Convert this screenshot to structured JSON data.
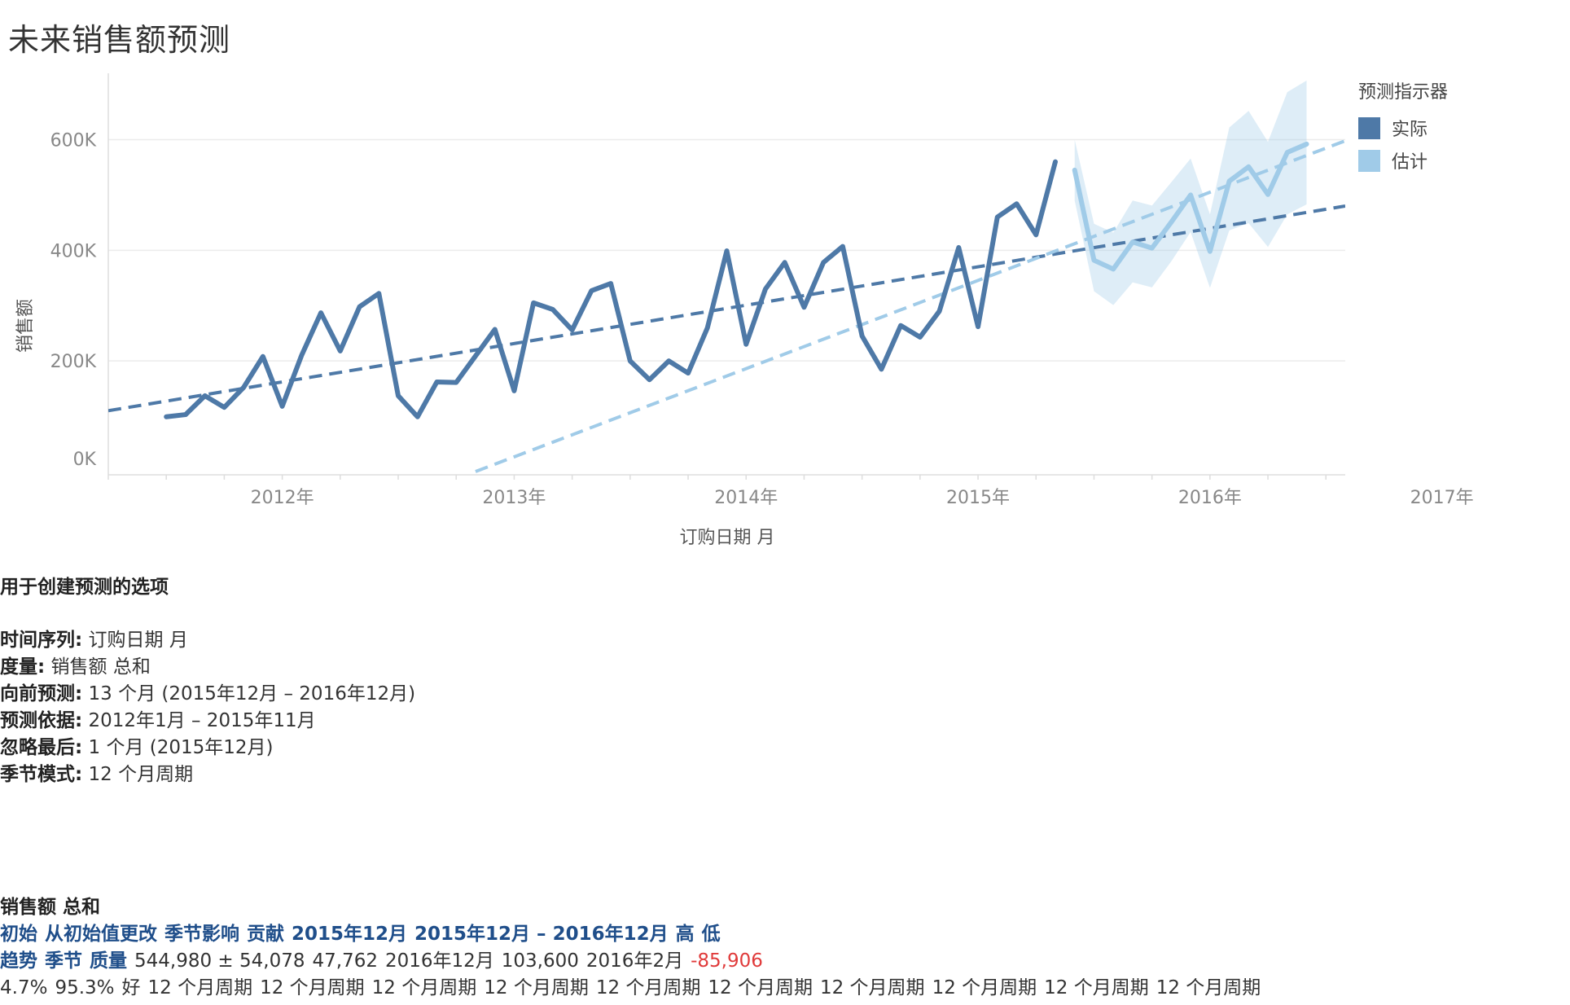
{
  "title": "未来销售额预测",
  "chart_data": {
    "type": "line",
    "xlabel": "订购日期 月",
    "ylabel": "销售额",
    "x_tick_labels": [
      "2012年",
      "2013年",
      "2014年",
      "2015年",
      "2016年",
      "2017年"
    ],
    "y_tick_labels": [
      "0K",
      "200K",
      "400K",
      "600K"
    ],
    "ylim": [
      0,
      720000
    ],
    "xlim": [
      "2011-10",
      "2017-02"
    ],
    "grid": "horizontal",
    "legend": {
      "title": "预测指示器",
      "placement": "top-right",
      "items": [
        {
          "label": "实际",
          "color": "#4e79a7"
        },
        {
          "label": "估计",
          "color": "#a0cbe8"
        }
      ]
    },
    "series": [
      {
        "name": "实际",
        "color": "#4e79a7",
        "x": [
          "2012-01",
          "2012-02",
          "2012-03",
          "2012-04",
          "2012-05",
          "2012-06",
          "2012-07",
          "2012-08",
          "2012-09",
          "2012-10",
          "2012-11",
          "2012-12",
          "2013-01",
          "2013-02",
          "2013-03",
          "2013-04",
          "2013-05",
          "2013-06",
          "2013-07",
          "2013-08",
          "2013-09",
          "2013-10",
          "2013-11",
          "2013-12",
          "2014-01",
          "2014-02",
          "2014-03",
          "2014-04",
          "2014-05",
          "2014-06",
          "2014-07",
          "2014-08",
          "2014-09",
          "2014-10",
          "2014-11",
          "2014-12",
          "2015-01",
          "2015-02",
          "2015-03",
          "2015-04",
          "2015-05",
          "2015-06",
          "2015-07",
          "2015-08",
          "2015-09",
          "2015-10",
          "2015-11"
        ],
        "values": [
          99000,
          103000,
          137000,
          116000,
          152000,
          208000,
          118000,
          210000,
          287000,
          218000,
          298000,
          322000,
          137000,
          99000,
          162000,
          161000,
          209000,
          257000,
          146000,
          305000,
          293000,
          256000,
          327000,
          340000,
          200000,
          166000,
          200000,
          178000,
          260000,
          399000,
          230000,
          330000,
          378000,
          297000,
          378000,
          407000,
          245000,
          185000,
          264000,
          243000,
          290000,
          405000,
          262000,
          460000,
          484000,
          428000,
          560000
        ]
      },
      {
        "name": "估计",
        "color": "#a0cbe8",
        "x": [
          "2015-12",
          "2016-01",
          "2016-02",
          "2016-03",
          "2016-04",
          "2016-05",
          "2016-06",
          "2016-07",
          "2016-08",
          "2016-09",
          "2016-10",
          "2016-11",
          "2016-12"
        ],
        "values": [
          545000,
          382000,
          366000,
          415000,
          404000,
          451000,
          500000,
          398000,
          525000,
          551000,
          501000,
          577000,
          592000
        ],
        "upper": [
          600000,
          448000,
          432000,
          490000,
          481000,
          523000,
          566000,
          465000,
          622000,
          652000,
          596000,
          686000,
          707000
        ],
        "lower": [
          490000,
          326000,
          301000,
          342000,
          333000,
          380000,
          433000,
          332000,
          436000,
          449000,
          406000,
          465000,
          483000
        ]
      }
    ],
    "trend_lines": [
      {
        "series": "实际",
        "style": "dashed",
        "color": "#4e79a7",
        "x": [
          "2011-10",
          "2017-02"
        ],
        "values": [
          110000,
          480000
        ]
      },
      {
        "series": "估计",
        "style": "dashed",
        "color": "#a0cbe8",
        "x": [
          "2013-05",
          "2017-02"
        ],
        "values": [
          0,
          598000
        ]
      }
    ]
  },
  "options": {
    "heading": "用于创建预测的选项",
    "items": [
      {
        "label": "时间序列:",
        "value": "订购日期 月"
      },
      {
        "label": "度量:",
        "value": "销售额 总和"
      },
      {
        "label": "向前预测:",
        "value": "13 个月 (2015年12月 – 2016年12月)"
      },
      {
        "label": "预测依据:",
        "value": "2012年1月 – 2015年11月"
      },
      {
        "label": "忽略最后:",
        "value": "1 个月 (2015年12月)"
      },
      {
        "label": "季节模式:",
        "value": "12 个月周期"
      }
    ]
  },
  "summary": {
    "heading": "销售额 总和",
    "header_row": [
      "初始",
      "从初始值更改",
      "季节影响",
      "贡献",
      "2015年12月",
      "2015年12月 – 2016年12月",
      "高",
      "低"
    ],
    "row1_labels": [
      "趋势",
      "季节",
      "质量"
    ],
    "row1_values": [
      "544,980 ± 54,078",
      "47,762",
      "2016年12月",
      "103,600",
      "2016年2月"
    ],
    "row1_negative": "-85,906",
    "row2_values": [
      "4.7%",
      "95.3%",
      "好",
      "12 个月周期",
      "12 个月周期",
      "12 个月周期",
      "12 个月周期",
      "12 个月周期",
      "12 个月周期",
      "12 个月周期",
      "12 个月周期",
      "12 个月周期",
      "12 个月周期"
    ]
  }
}
